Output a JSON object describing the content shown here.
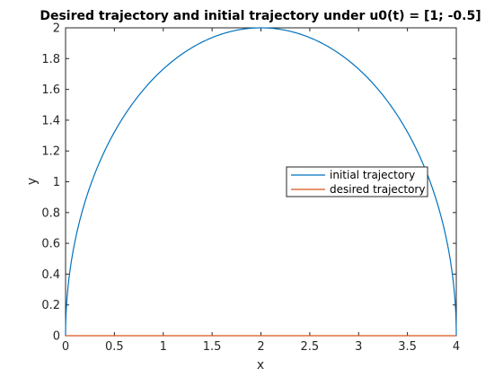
{
  "chart_data": {
    "type": "line",
    "title": "Desired trajectory and initial trajectory under u0(t) = [1; -0.5]",
    "xlabel": "x",
    "ylabel": "y",
    "xlim": [
      0,
      4
    ],
    "ylim": [
      0,
      2
    ],
    "xticks": [
      "0",
      "0.5",
      "1",
      "1.5",
      "2",
      "2.5",
      "3",
      "3.5",
      "4"
    ],
    "yticks": [
      "0",
      "0.2",
      "0.4",
      "0.6",
      "0.8",
      "1",
      "1.2",
      "1.4",
      "1.6",
      "1.8",
      "2"
    ],
    "grid": false,
    "legend_position": "right",
    "series": [
      {
        "name": "initial trajectory",
        "color": "#0072BD",
        "shape": "semi-ellipse",
        "x": [
          0,
          0.1,
          0.25,
          0.5,
          0.75,
          1,
          1.25,
          1.5,
          1.75,
          2,
          2.25,
          2.5,
          2.75,
          3,
          3.25,
          3.5,
          3.75,
          3.9,
          4
        ],
        "y": [
          0,
          0.62,
          0.97,
          1.32,
          1.56,
          1.73,
          1.85,
          1.94,
          1.98,
          2.0,
          1.98,
          1.94,
          1.85,
          1.73,
          1.56,
          1.32,
          0.97,
          0.62,
          0
        ]
      },
      {
        "name": "desired trajectory",
        "color": "#D95319",
        "x": [
          0,
          4
        ],
        "y": [
          0,
          0
        ]
      }
    ]
  }
}
